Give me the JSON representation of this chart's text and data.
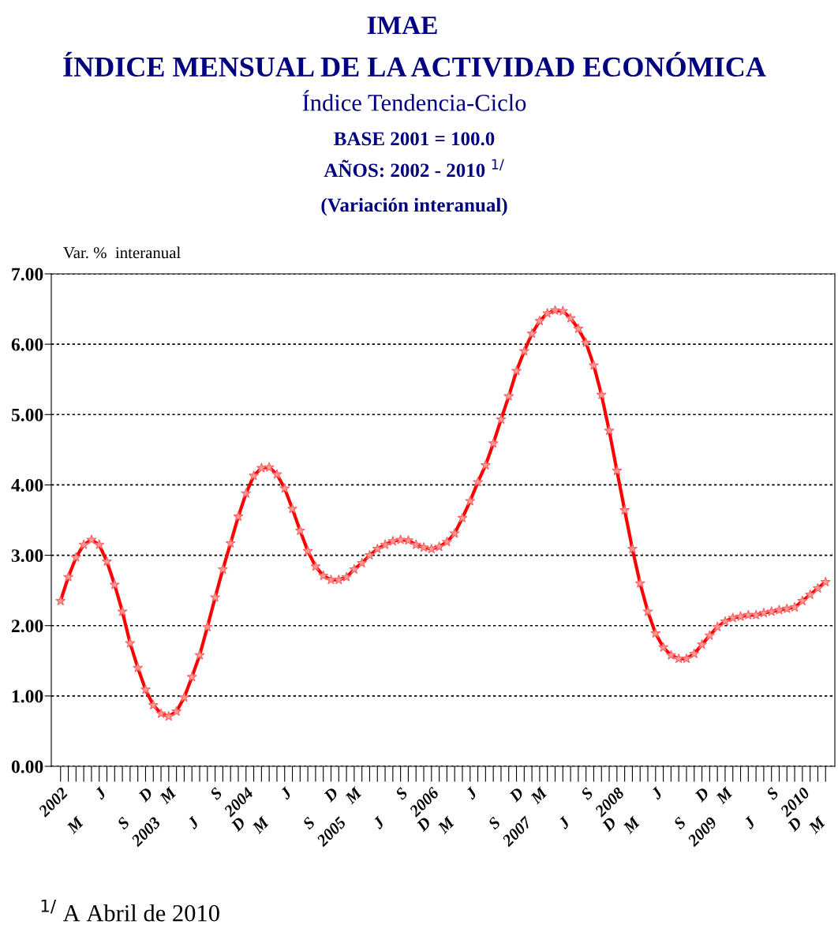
{
  "chart_data": {
    "type": "line",
    "title": "IMAE",
    "subtitle": "ÍNDICE MENSUAL DE LA ACTIVIDAD ECONÓMICA\nÍndice Tendencia-Ciclo\nBASE 2001 = 100.0\nAÑOS: 2002 - 2010 $^{1/}$\n(Variación interanual)",
    "ylabel": "Var. %  interanual",
    "annotations": [
      "$^{1/}$ A Abril de 2010"
    ],
    "categories": [
      "2002",
      null,
      "M",
      null,
      null,
      "J",
      null,
      null,
      "S",
      null,
      null,
      "D",
      "2003",
      null,
      "M",
      null,
      null,
      "J",
      null,
      null,
      "S",
      null,
      null,
      "D",
      "2004",
      null,
      "M",
      null,
      null,
      "J",
      null,
      null,
      "S",
      null,
      null,
      "D",
      "2005",
      null,
      "M",
      null,
      null,
      "J",
      null,
      null,
      "S",
      null,
      null,
      "D",
      "2006",
      null,
      "M",
      null,
      null,
      "J",
      null,
      null,
      "S",
      null,
      null,
      "D",
      "2007",
      null,
      "M",
      null,
      null,
      "J",
      null,
      null,
      "S",
      null,
      null,
      "D",
      "2008",
      null,
      "M",
      null,
      null,
      "J",
      null,
      null,
      "S",
      null,
      null,
      "D",
      "2009",
      null,
      "M",
      null,
      null,
      "J",
      null,
      null,
      "S",
      null,
      null,
      "D",
      "2010",
      null,
      "M",
      null
    ],
    "series": [
      {
        "color": "#ff0000",
        "values": [
          2.35,
          2.69,
          2.97,
          3.15,
          3.22,
          3.15,
          2.91,
          2.58,
          2.2,
          1.75,
          1.4,
          1.09,
          0.87,
          0.75,
          0.71,
          0.78,
          0.98,
          1.27,
          1.58,
          1.98,
          2.4,
          2.8,
          3.17,
          3.55,
          3.88,
          4.13,
          4.24,
          4.25,
          4.15,
          3.95,
          3.66,
          3.35,
          3.06,
          2.84,
          2.71,
          2.65,
          2.65,
          2.69,
          2.8,
          2.89,
          3.0,
          3.09,
          3.15,
          3.2,
          3.22,
          3.21,
          3.15,
          3.11,
          3.09,
          3.12,
          3.19,
          3.31,
          3.53,
          3.77,
          4.04,
          4.28,
          4.59,
          4.93,
          5.26,
          5.62,
          5.9,
          6.15,
          6.33,
          6.44,
          6.48,
          6.47,
          6.37,
          6.22,
          6.02,
          5.7,
          5.28,
          4.77,
          4.2,
          3.64,
          3.09,
          2.6,
          2.2,
          1.89,
          1.69,
          1.58,
          1.53,
          1.53,
          1.6,
          1.73,
          1.86,
          1.98,
          2.06,
          2.11,
          2.13,
          2.15,
          2.15,
          2.18,
          2.2,
          2.22,
          2.24,
          2.26,
          2.35,
          2.44,
          2.53,
          2.62
        ]
      }
    ],
    "ylim": [
      0,
      7
    ],
    "yticks": [
      {
        "value": 0,
        "label": "0.00"
      },
      {
        "value": 1,
        "label": "1.00"
      },
      {
        "value": 2,
        "label": "2.00"
      },
      {
        "value": 3,
        "label": "3.00"
      },
      {
        "value": 4,
        "label": "4.00"
      },
      {
        "value": 5,
        "label": "5.00"
      },
      {
        "value": 6,
        "label": "6.00"
      },
      {
        "value": 7,
        "label": "7.00"
      }
    ],
    "grid": "y",
    "marker": "star",
    "line_style": "solid"
  }
}
